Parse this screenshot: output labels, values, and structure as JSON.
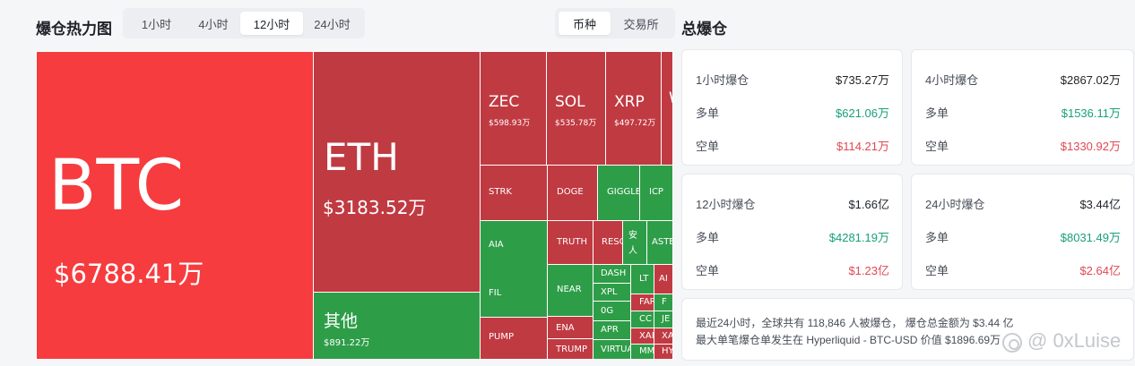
{
  "heatmap": {
    "title": "爆仓热力图",
    "time_tabs": [
      "1小时",
      "4小时",
      "12小时",
      "24小时"
    ],
    "active_time_tab": "12小时",
    "group_tabs": [
      "币种",
      "交易所"
    ],
    "active_group_tab": "币种",
    "tiles": {
      "btc": {
        "symbol": "BTC",
        "value": "$6788.41万"
      },
      "eth": {
        "symbol": "ETH",
        "value": "$3183.52万"
      },
      "other": {
        "symbol": "其他",
        "value": "$891.22万"
      },
      "zec": {
        "symbol": "ZEC",
        "value": "$598.93万"
      },
      "sol": {
        "symbol": "SOL",
        "value": "$535.78万"
      },
      "xrp": {
        "symbol": "XRP",
        "value": "$497.72万"
      },
      "w": {
        "symbol": "W"
      },
      "strk": {
        "symbol": "STRK"
      },
      "doge": {
        "symbol": "DOGE"
      },
      "giggle": {
        "symbol": "GIGGLE"
      },
      "icp": {
        "symbol": "ICP"
      },
      "aia": {
        "symbol": "AIA"
      },
      "fil": {
        "symbol": "FIL"
      },
      "truth": {
        "symbol": "TRUTH"
      },
      "resolv": {
        "symbol": "RESOLV"
      },
      "an": {
        "symbol": "安人"
      },
      "aster": {
        "symbol": "ASTER"
      },
      "near": {
        "symbol": "NEAR"
      },
      "dash": {
        "symbol": "DASH"
      },
      "xpl": {
        "symbol": "XPL"
      },
      "zerog": {
        "symbol": "0G"
      },
      "ena": {
        "symbol": "ENA"
      },
      "apr": {
        "symbol": "APR"
      },
      "pump": {
        "symbol": "PUMP"
      },
      "trump": {
        "symbol": "TRUMP"
      },
      "virtual": {
        "symbol": "VIRTUAL"
      },
      "lt": {
        "symbol": "LT"
      },
      "ai": {
        "symbol": "AI"
      },
      "far": {
        "symbol": "FAR"
      },
      "f": {
        "symbol": "F"
      },
      "cc": {
        "symbol": "CC"
      },
      "je": {
        "symbol": "JE"
      },
      "xai": {
        "symbol": "XAI"
      },
      "xa": {
        "symbol": "XA"
      },
      "mm": {
        "symbol": "MM"
      },
      "hy": {
        "symbol": "HY"
      }
    }
  },
  "summary": {
    "title": "总爆仓",
    "cards": [
      {
        "label": "1小时爆仓",
        "total": "$735.27万",
        "long_label": "多单",
        "long": "$621.06万",
        "short_label": "空单",
        "short": "$114.21万"
      },
      {
        "label": "4小时爆仓",
        "total": "$2867.02万",
        "long_label": "多单",
        "long": "$1536.11万",
        "short_label": "空单",
        "short": "$1330.92万"
      },
      {
        "label": "12小时爆仓",
        "total": "$1.66亿",
        "long_label": "多单",
        "long": "$4281.19万",
        "short_label": "空单",
        "short": "$1.23亿"
      },
      {
        "label": "24小时爆仓",
        "total": "$3.44亿",
        "long_label": "多单",
        "long": "$8031.49万",
        "short_label": "空单",
        "short": "$2.64亿"
      }
    ],
    "note_line1": "最近24小时，全球共有 118,846 人被爆仓， 爆仓总金额为 $3.44 亿",
    "note_line2": "最大单笔爆仓单发生在 Hyperliquid - BTC-USD 价值 $1896.69万"
  },
  "watermark": "@ 0xLuise",
  "colors": {
    "long": "#18a07a",
    "short": "#e04852",
    "tile_red": "#c03a42",
    "tile_bright_red": "#f63c3e",
    "tile_green": "#2e9d48"
  }
}
